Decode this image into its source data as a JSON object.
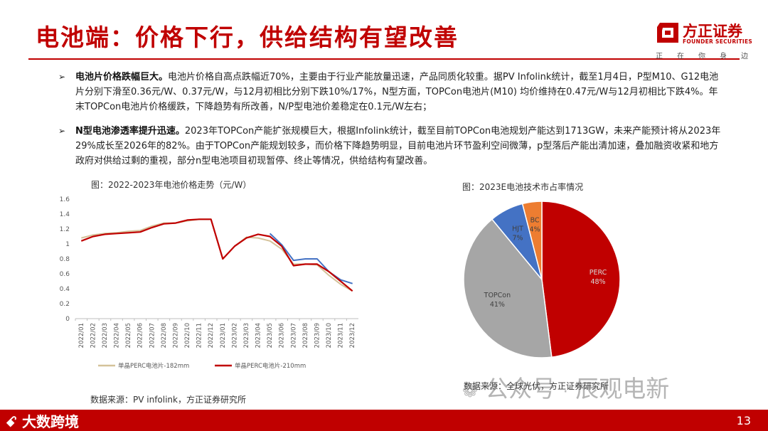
{
  "header": {
    "title": "电池端：价格下行，供给结构有望改善",
    "logo_cn": "方正证券",
    "logo_en": "FOUNDER SECURITIES",
    "slogan": [
      "正",
      "在",
      "你",
      "身",
      "边"
    ]
  },
  "bullets": [
    {
      "heading": "电池片价格跌幅巨大。",
      "body": "电池片价格自高点跌幅近70%，主要由于行业产能放量迅速，产品同质化较重。据PV Infolink统计，截至1月4日，P型M10、G12电池片分别下滑至0.36元/W、0.37元/W，与12月初相比分别下跌10%/17%，N型方面，TOPCon电池片(M10) 均价维持在0.47元/W与12月初相比下跌4%。年末TOPCon电池片价格缓跌，下降趋势有所改善，N/P型电池价差稳定在0.1元/W左右；"
    },
    {
      "heading": "N型电池渗透率提升迅速。",
      "body": "2023年TOPCon产能扩张规模巨大，根据Infolink统计，截至目前TOPCon电池规划产能达到1713GW，未来产能预计将从2023年29%成长至2026年的82%。由于TOPCon产能规划较多，而价格下降趋势明显，目前电池片环节盈利空间微薄，p型落后产能出清加速，叠加融资收紧和地方政府对供给过剩的重视，部分n型电池项目初现暂停、终止等情况，供给结构有望改善。"
    }
  ],
  "captions": {
    "line_chart": "图：2022-2023年电池价格走势（元/W）",
    "pie_chart": "图：2023E电池技术市占率情况",
    "source_left": "数据来源：PV infolink，方正证券研究所",
    "source_right": "数据来源：全球光伏，方正证券研究所"
  },
  "watermark": {
    "text1": "公众号",
    "sep": "·",
    "text2": "辰观电新"
  },
  "footer": {
    "page": "13",
    "brand": "大数跨境"
  },
  "colors": {
    "brand_red": "#c00000",
    "line_182": "#d4c29a",
    "line_210": "#c00000",
    "topcon_line": "#4472c4",
    "pie_perc": "#c00000",
    "pie_topcon": "#a6a6a6",
    "pie_hjt": "#4472c4",
    "pie_bc": "#ed7d31"
  },
  "chart_data": [
    {
      "type": "line",
      "title": "图：2022-2023年电池价格走势（元/W）",
      "x": [
        "2022/01",
        "2022/02",
        "2022/03",
        "2022/04",
        "2022/05",
        "2022/06",
        "2022/07",
        "2022/08",
        "2022/09",
        "2022/10",
        "2022/11",
        "2022/12",
        "2023/01",
        "2023/02",
        "2023/03",
        "2023/04",
        "2023/05",
        "2023/06",
        "2023/07",
        "2023/08",
        "2023/09",
        "2023/10",
        "2023/11",
        "2023/12"
      ],
      "ylim": [
        0,
        1.6
      ],
      "yticks": [
        0,
        0.2,
        0.4,
        0.6,
        0.8,
        1,
        1.2,
        1.4,
        1.6
      ],
      "series": [
        {
          "name": "单晶PERC电池片-182mm",
          "color": "#d4c29a",
          "values": [
            1.08,
            1.12,
            1.14,
            1.15,
            1.17,
            1.18,
            1.24,
            1.28,
            1.28,
            1.31,
            1.33,
            1.33,
            0.8,
            0.97,
            1.09,
            1.08,
            1.04,
            0.93,
            0.73,
            0.73,
            0.72,
            0.58,
            0.46,
            0.37
          ]
        },
        {
          "name": "单晶PERC电池片-210mm",
          "color": "#c00000",
          "values": [
            1.04,
            1.1,
            1.13,
            1.14,
            1.15,
            1.16,
            1.22,
            1.27,
            1.28,
            1.32,
            1.33,
            1.33,
            0.8,
            0.97,
            1.08,
            1.13,
            1.1,
            0.97,
            0.71,
            0.73,
            0.73,
            0.63,
            0.5,
            0.37
          ]
        },
        {
          "name": "",
          "color": "#4472c4",
          "values": [
            null,
            null,
            null,
            null,
            null,
            null,
            null,
            null,
            null,
            null,
            null,
            null,
            null,
            null,
            null,
            null,
            1.14,
            0.99,
            0.78,
            0.8,
            0.8,
            0.63,
            0.52,
            0.47
          ]
        }
      ],
      "legend_position": "bottom"
    },
    {
      "type": "pie",
      "title": "图：2023E电池技术市占率情况",
      "slices": [
        {
          "label": "PERC",
          "value": 48,
          "pct": "48%",
          "color": "#c00000"
        },
        {
          "label": "TOPCon",
          "value": 41,
          "pct": "41%",
          "color": "#a6a6a6"
        },
        {
          "label": "HJT",
          "value": 7,
          "pct": "7%",
          "color": "#4472c4"
        },
        {
          "label": "BC",
          "value": 4,
          "pct": "4%",
          "color": "#ed7d31"
        }
      ]
    }
  ]
}
